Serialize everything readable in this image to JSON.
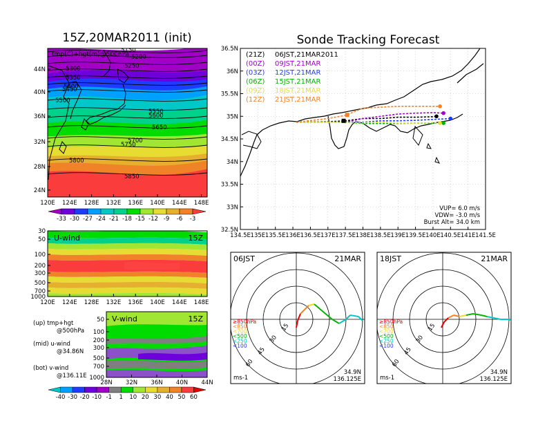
{
  "titles": {
    "left": "15Z,20MAR2011 (init)",
    "right": "Sonde Tracking Forecast"
  },
  "top_map": {
    "label": "tmp(C)+hgt(m)@500hPa",
    "lat_ticks": [
      "44N",
      "40N",
      "36N",
      "32N",
      "28N",
      "24N"
    ],
    "lon_ticks": [
      "120E",
      "124E",
      "128E",
      "132E",
      "136E",
      "140E",
      "144E",
      "148E"
    ],
    "contours": [
      "5150",
      "5200",
      "5250",
      "5300",
      "5350",
      "5400",
      "5450",
      "5500",
      "5550",
      "5600",
      "5650",
      "5700",
      "5750",
      "5800",
      "5850"
    ],
    "colorbar": [
      "-33",
      "-30",
      "-27",
      "-24",
      "-21",
      "-18",
      "-15",
      "-12",
      "-9",
      "-6",
      "-3"
    ],
    "colors": [
      "#a000c8",
      "#6e00dc",
      "#1e3cff",
      "#00a0ff",
      "#00c8c8",
      "#00d28c",
      "#00dc00",
      "#a0e632",
      "#e6dc32",
      "#e6af2d",
      "#f08228",
      "#fa3c3c"
    ]
  },
  "uwind": {
    "label": "U-wind",
    "time": "15Z",
    "p_ticks": [
      "30",
      "50",
      "100",
      "200",
      "300",
      "500",
      "700",
      "1000"
    ],
    "lon_ticks": [
      "120E",
      "124E",
      "128E",
      "132E",
      "136E",
      "140E",
      "144E",
      "148E"
    ]
  },
  "vwind": {
    "label": "V-wind",
    "time": "15Z",
    "p_ticks": [
      "50",
      "100",
      "200",
      "300",
      "500",
      "700",
      "1000"
    ],
    "lat_ticks": [
      "28N",
      "32N",
      "36N",
      "40N",
      "44N"
    ],
    "colorbar": [
      "-40",
      "-30",
      "-20",
      "-10",
      "-1",
      "1",
      "10",
      "20",
      "30",
      "40",
      "50",
      "60"
    ]
  },
  "notes": [
    {
      "line1": "(up) tmp+hgt",
      "line2": "@500hPa"
    },
    {
      "line1": "(mid) u-wind",
      "line2": "@34.86N"
    },
    {
      "line1": "(bot) v-wind",
      "line2": "@136.11E"
    }
  ],
  "track": {
    "lat_ticks": [
      "36.5N",
      "36N",
      "35.5N",
      "35N",
      "34.5N",
      "34N",
      "33.5N",
      "33N",
      "32.5N"
    ],
    "lon_ticks": [
      "134.5E",
      "135E",
      "135.5E",
      "136E",
      "136.5E",
      "137E",
      "137.5E",
      "138E",
      "138.5E",
      "139E",
      "139.5E",
      "140E",
      "140.5E",
      "141E",
      "141.5E"
    ],
    "legend": [
      {
        "code": "(21Z)",
        "time": "06JST,21MAR2011",
        "color": "#000000"
      },
      {
        "code": "(00Z)",
        "time": "09JST,21MAR",
        "color": "#a000c8"
      },
      {
        "code": "(03Z)",
        "time": "12JST,21MAR",
        "color": "#1e3cff"
      },
      {
        "code": "(06Z)",
        "time": "15JST,21MAR",
        "color": "#00b400"
      },
      {
        "code": "(09Z)",
        "time": "18JST,21MAR",
        "color": "#e6dc32"
      },
      {
        "code": "(12Z)",
        "time": "21JST,21MAR",
        "color": "#f08228"
      }
    ],
    "params": [
      "VUP= 6.0 m/s",
      "VDW= -3.0 m/s",
      "Burst Alt= 34.0 km"
    ]
  },
  "hodo1": {
    "time": "06JST",
    "date": "21MAR",
    "lat": "34.9N",
    "lon": "136.125E",
    "unit": "ms-1",
    "rings": [
      "15",
      "30",
      "45",
      "60"
    ]
  },
  "hodo2": {
    "time": "18JST",
    "date": "21MAR",
    "lat": "34.9N",
    "lon": "136.125E",
    "unit": "ms-1",
    "rings": [
      "15",
      "30",
      "45",
      "60"
    ]
  },
  "hodo_legend": [
    {
      "text": "≥850hPa",
      "color": "#e60000"
    },
    {
      "text": "<850",
      "color": "#f08228"
    },
    {
      "text": "<700",
      "color": "#e6dc32"
    },
    {
      "text": "<500",
      "color": "#00b400"
    },
    {
      "text": "<250",
      "color": "#00c8c8"
    },
    {
      "text": "<100",
      "color": "#1e3cff"
    }
  ],
  "chart_data": [
    {
      "type": "heatmap",
      "title": "15Z,20MAR2011 (init)",
      "subtitle": "tmp(C)+hgt(m)@500hPa",
      "x_range": [
        120,
        149
      ],
      "y_range": [
        22.5,
        47
      ],
      "colorbar_ticks": [
        -33,
        -30,
        -27,
        -24,
        -21,
        -18,
        -15,
        -12,
        -9,
        -6,
        -3
      ]
    },
    {
      "type": "heatmap",
      "title": "U-wind",
      "subtitle": "15Z",
      "x_range": [
        120,
        149
      ],
      "y_ticks": [
        30,
        50,
        100,
        200,
        300,
        500,
        700,
        1000
      ]
    },
    {
      "type": "heatmap",
      "title": "V-wind",
      "subtitle": "15Z",
      "x_range": [
        28,
        44
      ],
      "y_ticks": [
        50,
        100,
        200,
        300,
        500,
        700,
        1000
      ],
      "colorbar_ticks": [
        -40,
        -30,
        -20,
        -10,
        -1,
        1,
        10,
        20,
        30,
        40,
        50,
        60
      ]
    },
    {
      "type": "line",
      "title": "Sonde Tracking Forecast",
      "x_range": [
        134.5,
        141.5
      ],
      "y_range": [
        32.5,
        36.5
      ],
      "series": [
        {
          "name": "(21Z) 06JST,21MAR2011",
          "x": [
            136.1,
            137,
            137.5,
            138,
            138.5,
            139,
            139.5,
            140,
            140.1
          ],
          "y": [
            34.87,
            34.88,
            34.9,
            34.95,
            34.95,
            34.98,
            34.98,
            34.99,
            35.0
          ]
        },
        {
          "name": "(00Z) 09JST,21MAR",
          "x": [
            136.1,
            137,
            137.5,
            138,
            138.5,
            139,
            139.5,
            140,
            140.3
          ],
          "y": [
            34.87,
            34.88,
            34.87,
            34.95,
            35.0,
            35.05,
            35.07,
            35.08,
            35.07
          ]
        },
        {
          "name": "(03Z) 12JST,21MAR",
          "x": [
            136.1,
            137,
            137.5,
            138,
            138.5,
            139,
            139.5,
            140,
            140.5
          ],
          "y": [
            34.87,
            34.87,
            34.87,
            34.87,
            34.9,
            34.9,
            34.91,
            34.93,
            34.95
          ]
        },
        {
          "name": "(06Z) 15JST,21MAR",
          "x": [
            136.1,
            137,
            137.5,
            138,
            138.5,
            139,
            139.5,
            140,
            140.3
          ],
          "y": [
            34.87,
            34.87,
            34.87,
            34.84,
            34.84,
            34.84,
            34.85,
            34.85,
            34.85
          ]
        },
        {
          "name": "(09Z) 18JST,21MAR",
          "x": [
            136.1,
            137,
            137.5,
            138,
            138.5,
            139,
            139.5,
            140,
            140.2
          ],
          "y": [
            34.87,
            34.87,
            34.86,
            34.86,
            34.87,
            34.85,
            34.85,
            34.86,
            34.85
          ]
        },
        {
          "name": "(12Z) 21JST,21MAR",
          "x": [
            136.1,
            137,
            137.5,
            138,
            138.5,
            139,
            139.5,
            140,
            140.2
          ],
          "y": [
            34.87,
            34.95,
            35.02,
            35.18,
            35.2,
            35.22,
            35.22,
            35.22,
            35.22
          ]
        }
      ]
    }
  ]
}
